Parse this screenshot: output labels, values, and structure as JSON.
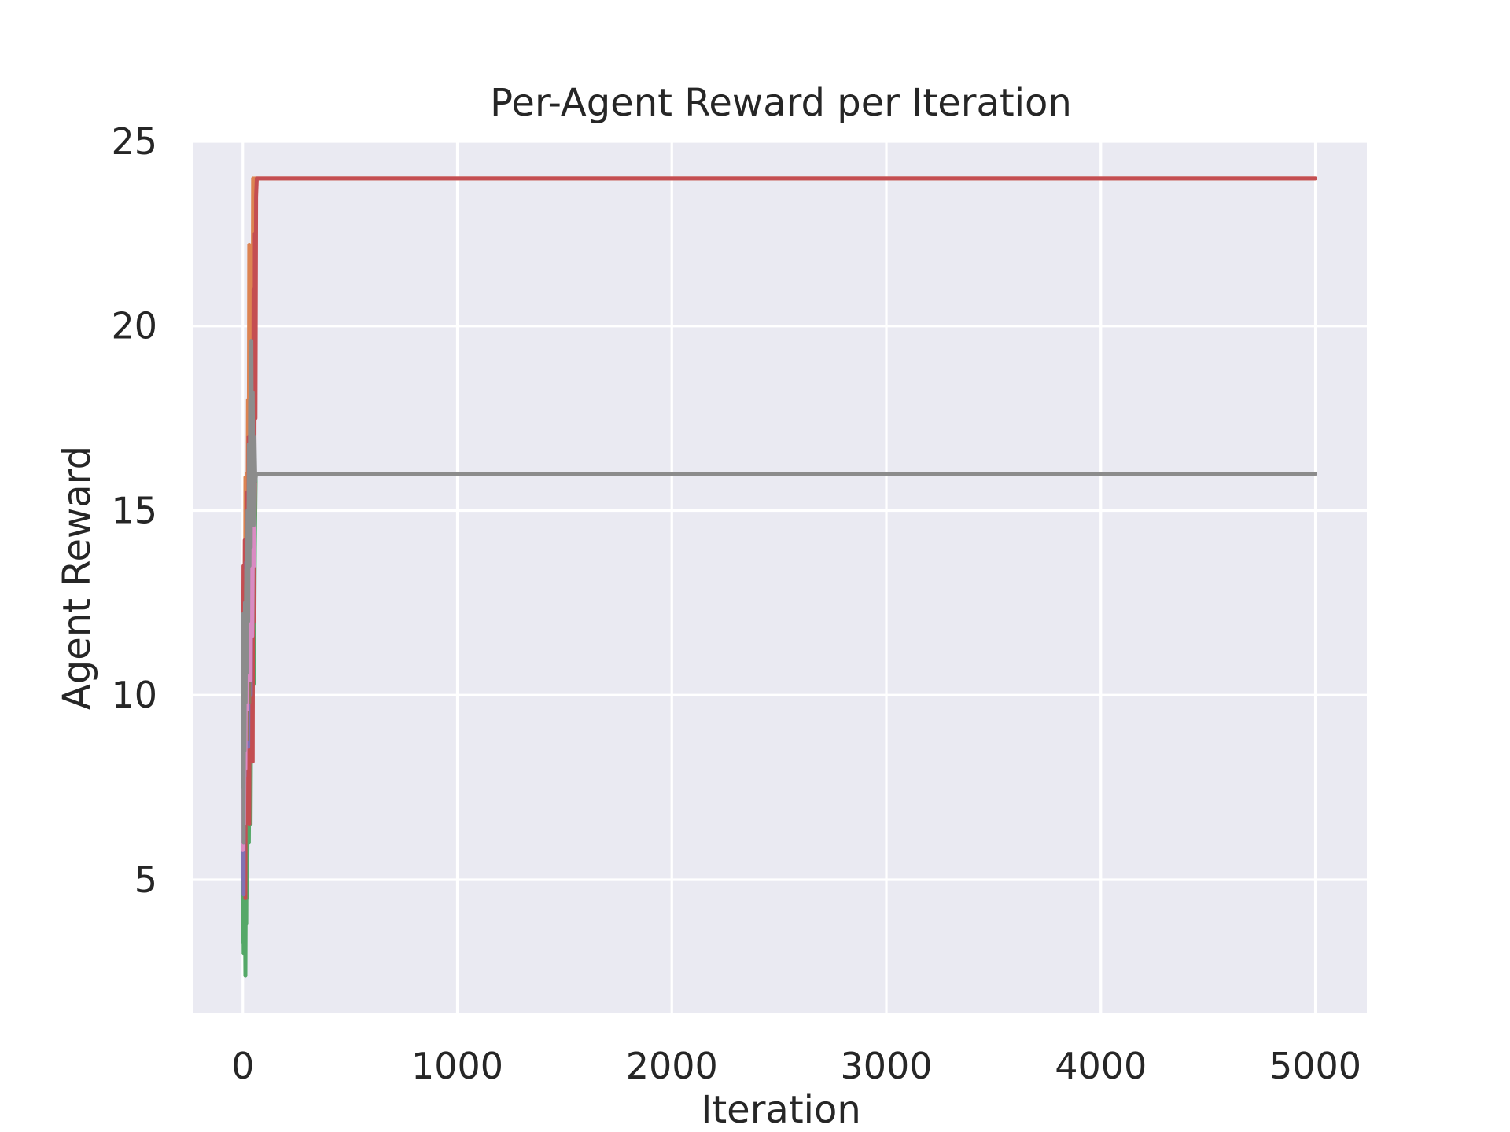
{
  "chart_data": {
    "type": "line",
    "title": "Per-Agent Reward per Iteration",
    "xlabel": "Iteration",
    "ylabel": "Agent Reward",
    "xlim": [
      -230,
      5240
    ],
    "ylim": [
      1.4,
      25
    ],
    "xticks": [
      0,
      1000,
      2000,
      3000,
      4000,
      5000
    ],
    "xtick_labels": [
      "0",
      "1000",
      "2000",
      "3000",
      "4000",
      "5000"
    ],
    "yticks": [
      5,
      10,
      15,
      20,
      25
    ],
    "ytick_labels": [
      "5",
      "10",
      "15",
      "20",
      "25"
    ],
    "grid": true,
    "background": "#eaeaf2",
    "grid_color": "#ffffff",
    "legend": "none",
    "series": [
      {
        "color": "#4c72b0",
        "x": [
          0,
          2,
          4,
          6,
          8,
          10,
          12,
          14,
          16,
          18,
          20,
          22,
          24,
          26,
          28,
          30,
          35,
          40,
          45,
          50,
          55,
          60,
          5000
        ],
        "y": [
          6.0,
          10.5,
          4.8,
          12.0,
          8.2,
          11.3,
          6.5,
          13.0,
          9.1,
          12.4,
          10.0,
          14.2,
          11.0,
          15.3,
          12.5,
          16.0,
          13.2,
          16.0,
          14.8,
          16.0,
          16.0,
          16.0,
          16.0
        ]
      },
      {
        "color": "#dd8452",
        "x": [
          0,
          3,
          6,
          9,
          12,
          15,
          18,
          21,
          24,
          27,
          30,
          33,
          36,
          39,
          42,
          45,
          48,
          52,
          56,
          60,
          5000
        ],
        "y": [
          5.5,
          9.0,
          12.5,
          7.8,
          15.9,
          11.2,
          16.0,
          13.0,
          18.0,
          14.5,
          22.2,
          17.0,
          21.5,
          15.8,
          20.0,
          17.5,
          24.0,
          19.0,
          24.0,
          24.0,
          24.0
        ]
      },
      {
        "color": "#55a868",
        "x": [
          0,
          2,
          4,
          6,
          8,
          10,
          12,
          14,
          16,
          18,
          20,
          24,
          28,
          32,
          36,
          40,
          44,
          48,
          52,
          56,
          60,
          5000
        ],
        "y": [
          3.3,
          5.0,
          3.0,
          6.0,
          3.5,
          4.2,
          2.4,
          5.5,
          3.8,
          7.0,
          4.5,
          8.5,
          6.0,
          9.8,
          6.5,
          11.0,
          8.2,
          12.5,
          10.3,
          14.0,
          16.0,
          16.0
        ]
      },
      {
        "color": "#c44e52",
        "x": [
          0,
          3,
          6,
          9,
          12,
          15,
          18,
          21,
          24,
          27,
          30,
          34,
          38,
          42,
          46,
          50,
          53,
          56,
          59,
          62,
          65,
          5000
        ],
        "y": [
          7.0,
          13.5,
          9.0,
          14.2,
          4.5,
          12.0,
          8.0,
          15.5,
          10.5,
          17.0,
          6.5,
          16.0,
          9.5,
          19.0,
          8.2,
          21.0,
          12.0,
          22.5,
          17.5,
          23.5,
          24.0,
          24.0
        ]
      },
      {
        "color": "#8172b3",
        "x": [
          0,
          2,
          4,
          6,
          8,
          10,
          13,
          16,
          19,
          22,
          25,
          28,
          31,
          34,
          37,
          40,
          44,
          48,
          52,
          56,
          60,
          5000
        ],
        "y": [
          5.0,
          9.5,
          4.6,
          11.2,
          7.8,
          12.5,
          9.0,
          13.6,
          10.2,
          12.8,
          8.6,
          13.0,
          11.5,
          12.2,
          10.0,
          13.8,
          12.0,
          15.0,
          14.0,
          16.0,
          16.0,
          16.0
        ]
      },
      {
        "color": "#937860",
        "x": [
          0,
          3,
          6,
          9,
          12,
          15,
          18,
          21,
          24,
          27,
          30,
          34,
          38,
          42,
          46,
          50,
          54,
          58,
          62,
          5000
        ],
        "y": [
          6.2,
          10.8,
          7.4,
          12.2,
          9.5,
          13.0,
          8.8,
          14.0,
          11.0,
          15.2,
          9.8,
          16.5,
          12.0,
          17.5,
          11.8,
          16.8,
          14.5,
          16.0,
          16.0,
          16.0
        ]
      },
      {
        "color": "#da8bc3",
        "x": [
          0,
          3,
          6,
          9,
          12,
          15,
          18,
          21,
          24,
          27,
          30,
          33,
          36,
          40,
          44,
          48,
          52,
          56,
          60,
          5000
        ],
        "y": [
          5.8,
          8.4,
          6.5,
          10.5,
          8.0,
          12.0,
          9.6,
          13.2,
          10.8,
          12.6,
          11.2,
          13.8,
          10.4,
          14.0,
          11.6,
          15.0,
          13.5,
          16.0,
          16.0,
          16.0
        ]
      },
      {
        "color": "#8c8c8c",
        "x": [
          0,
          2,
          4,
          6,
          8,
          10,
          13,
          16,
          19,
          22,
          25,
          28,
          31,
          34,
          37,
          40,
          43,
          46,
          50,
          54,
          58,
          62,
          66,
          5000
        ],
        "y": [
          7.5,
          12.2,
          6.0,
          11.0,
          8.5,
          12.5,
          9.8,
          13.4,
          10.6,
          15.0,
          12.0,
          16.8,
          13.5,
          18.0,
          14.0,
          19.6,
          15.2,
          18.2,
          14.6,
          17.0,
          15.8,
          16.0,
          16.0,
          16.0
        ]
      }
    ]
  }
}
